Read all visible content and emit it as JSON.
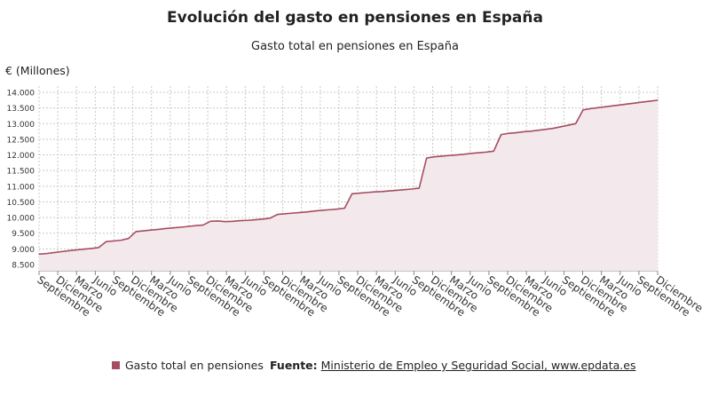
{
  "chart_data": {
    "type": "area",
    "title": "Evolución del gasto en pensiones en España",
    "subtitle": "Gasto total en pensiones en España",
    "ylabel": "€ (Millones)",
    "ylim": [
      8500,
      14000
    ],
    "yticks": [
      8500,
      9000,
      9500,
      10000,
      10500,
      11000,
      11500,
      12000,
      12500,
      13000,
      13500,
      14000
    ],
    "ytick_labels": [
      "8.500",
      "9.000",
      "9.500",
      "10.000",
      "10.500",
      "11.000",
      "11.500",
      "12.000",
      "12.500",
      "13.000",
      "13.500",
      "14.000"
    ],
    "xtick_labels": [
      "Septiembre",
      "Diciembre",
      "Marzo",
      "Junio",
      "Septiembre",
      "Diciembre",
      "Marzo",
      "Junio",
      "Septiembre",
      "Diciembre",
      "Marzo",
      "Junio",
      "Septiembre",
      "Diciembre",
      "Marzo",
      "Junio",
      "Septiembre",
      "Diciembre",
      "Marzo",
      "Junio",
      "Septiembre",
      "Diciembre",
      "Marzo",
      "Junio",
      "Septiembre",
      "Diciembre",
      "Marzo",
      "Junio",
      "Septiembre",
      "Diciembre",
      "Marzo",
      "Junio",
      "Septiembre",
      "Diciembre"
    ],
    "grid": true,
    "legend_position": "bottom-left",
    "series": [
      {
        "name": "Gasto total en pensiones",
        "color": "#a64d60",
        "fill": "#f3e9ec",
        "values": [
          8830,
          8850,
          8880,
          8910,
          8940,
          8965,
          8990,
          9010,
          9040,
          9230,
          9250,
          9275,
          9330,
          9550,
          9575,
          9600,
          9620,
          9650,
          9670,
          9690,
          9715,
          9740,
          9760,
          9880,
          9890,
          9870,
          9880,
          9900,
          9910,
          9930,
          9950,
          9980,
          10100,
          10120,
          10140,
          10160,
          10180,
          10210,
          10230,
          10250,
          10270,
          10300,
          10760,
          10780,
          10800,
          10820,
          10830,
          10850,
          10870,
          10890,
          10910,
          10940,
          11900,
          11940,
          11960,
          11980,
          12000,
          12020,
          12050,
          12070,
          12090,
          12120,
          12650,
          12690,
          12710,
          12740,
          12760,
          12790,
          12820,
          12850,
          12900,
          12950,
          13000,
          13440,
          13480,
          13510,
          13540,
          13570,
          13600,
          13630,
          13660,
          13690,
          13720,
          13750
        ]
      }
    ]
  },
  "footer": {
    "legend_label": "Gasto total en pensiones",
    "source_label": "Fuente:",
    "source_text": "Ministerio de Empleo y Seguridad Social, www.epdata.es"
  }
}
